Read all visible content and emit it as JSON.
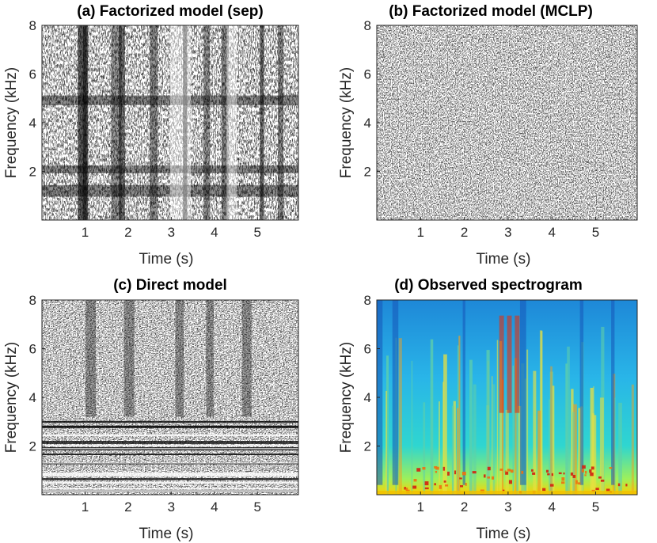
{
  "chart_data": [
    {
      "type": "heatmap",
      "id": "a",
      "title": "(a) Factorized model (sep)",
      "xlabel": "Time (s)",
      "ylabel": "Frequency (kHz)",
      "xlim": [
        0,
        5.95
      ],
      "ylim": [
        0,
        8
      ],
      "xticks": [
        1,
        2,
        3,
        4,
        5
      ],
      "yticks": [
        2,
        4,
        6,
        8
      ],
      "colormap": "gray",
      "texture": "mixed black/white with dark vertical bands near 1 s, 1.6 s, 2.5 s, 4.3 s and dark horizontal bands near 5 kHz"
    },
    {
      "type": "heatmap",
      "id": "b",
      "title": "(b) Factorized model (MCLP)",
      "xlabel": "Time (s)",
      "ylabel": "Frequency (kHz)",
      "xlim": [
        0,
        5.95
      ],
      "ylim": [
        0,
        8
      ],
      "xticks": [
        1,
        2,
        3,
        4,
        5
      ],
      "yticks": [
        2,
        4,
        6,
        8
      ],
      "colormap": "gray",
      "texture": "uniform fine black/white noise"
    },
    {
      "type": "heatmap",
      "id": "c",
      "title": "(c) Direct model",
      "xlabel": "Time (s)",
      "ylabel": "Frequency (kHz)",
      "xlim": [
        0,
        5.95
      ],
      "ylim": [
        0,
        8
      ],
      "xticks": [
        1,
        2,
        3,
        4,
        5
      ],
      "yticks": [
        2,
        4,
        6,
        8
      ],
      "colormap": "gray",
      "texture": "black/white with strong horizontal banding below 3 kHz"
    },
    {
      "type": "heatmap",
      "id": "d",
      "title": "(d) Observed spectrogram",
      "xlabel": "Time (s)",
      "ylabel": "Frequency (kHz)",
      "xlim": [
        0,
        5.95
      ],
      "ylim": [
        0,
        8
      ],
      "xticks": [
        1,
        2,
        3,
        4,
        5
      ],
      "yticks": [
        2,
        4,
        6,
        8
      ],
      "colormap": "jet",
      "texture": "speech spectrogram, strong low-frequency harmonics, high energy near 3 s"
    }
  ],
  "colors": {
    "axis": "#262626",
    "title": "#000000",
    "background": "#ffffff"
  }
}
